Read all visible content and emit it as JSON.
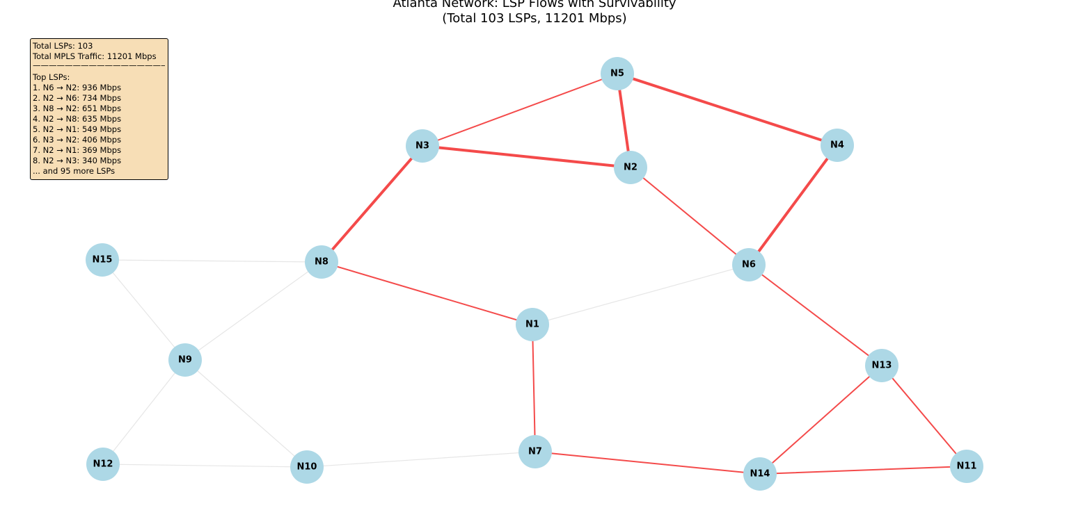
{
  "title": {
    "line1": "Atlanta Network: LSP Flows with Survivability",
    "line2": "(Total 103 LSPs, 11201 Mbps)"
  },
  "colors": {
    "node": "#add8e6",
    "active_edge": "#f44a4a",
    "inactive_edge": "#e6e6e6",
    "infobox_bg": "#f7deb6"
  },
  "nodes": [
    {
      "id": "N1",
      "label": "N1"
    },
    {
      "id": "N2",
      "label": "N2"
    },
    {
      "id": "N3",
      "label": "N3"
    },
    {
      "id": "N4",
      "label": "N4"
    },
    {
      "id": "N5",
      "label": "N5"
    },
    {
      "id": "N6",
      "label": "N6"
    },
    {
      "id": "N7",
      "label": "N7"
    },
    {
      "id": "N8",
      "label": "N8"
    },
    {
      "id": "N9",
      "label": "N9"
    },
    {
      "id": "N10",
      "label": "N10"
    },
    {
      "id": "N11",
      "label": "N11"
    },
    {
      "id": "N12",
      "label": "N12"
    },
    {
      "id": "N13",
      "label": "N13"
    },
    {
      "id": "N14",
      "label": "N14"
    },
    {
      "id": "N15",
      "label": "N15"
    }
  ],
  "edges": [
    {
      "from": "N5",
      "to": "N3",
      "state": "active",
      "weight": "medium"
    },
    {
      "from": "N5",
      "to": "N2",
      "state": "active",
      "weight": "heavy"
    },
    {
      "from": "N5",
      "to": "N4",
      "state": "active",
      "weight": "heavy"
    },
    {
      "from": "N3",
      "to": "N2",
      "state": "active",
      "weight": "heavy"
    },
    {
      "from": "N3",
      "to": "N8",
      "state": "active",
      "weight": "heavy"
    },
    {
      "from": "N4",
      "to": "N6",
      "state": "active",
      "weight": "heavy"
    },
    {
      "from": "N2",
      "to": "N6",
      "state": "active",
      "weight": "medium"
    },
    {
      "from": "N8",
      "to": "N1",
      "state": "active",
      "weight": "medium"
    },
    {
      "from": "N6",
      "to": "N13",
      "state": "active",
      "weight": "medium"
    },
    {
      "from": "N1",
      "to": "N7",
      "state": "active",
      "weight": "medium"
    },
    {
      "from": "N7",
      "to": "N14",
      "state": "active",
      "weight": "medium"
    },
    {
      "from": "N13",
      "to": "N14",
      "state": "active",
      "weight": "medium"
    },
    {
      "from": "N13",
      "to": "N11",
      "state": "active",
      "weight": "medium"
    },
    {
      "from": "N14",
      "to": "N11",
      "state": "active",
      "weight": "medium"
    },
    {
      "from": "N1",
      "to": "N6",
      "state": "inactive",
      "weight": "light"
    },
    {
      "from": "N15",
      "to": "N8",
      "state": "inactive",
      "weight": "light"
    },
    {
      "from": "N15",
      "to": "N9",
      "state": "inactive",
      "weight": "light"
    },
    {
      "from": "N8",
      "to": "N9",
      "state": "inactive",
      "weight": "light"
    },
    {
      "from": "N9",
      "to": "N12",
      "state": "inactive",
      "weight": "light"
    },
    {
      "from": "N9",
      "to": "N10",
      "state": "inactive",
      "weight": "light"
    },
    {
      "from": "N12",
      "to": "N10",
      "state": "inactive",
      "weight": "light"
    },
    {
      "from": "N10",
      "to": "N7",
      "state": "inactive",
      "weight": "light"
    }
  ],
  "infobox": {
    "total_lsps": "Total LSPs: 103",
    "total_traffic": "Total MPLS Traffic: 11201 Mbps",
    "separator": "————————————————————",
    "top_header": "Top LSPs:",
    "top_lsps": [
      "1. N6 → N2: 936 Mbps",
      "2. N2 → N6: 734 Mbps",
      "3. N8 → N2: 651 Mbps",
      "4. N2 → N8: 635 Mbps",
      "5. N2 → N1: 549 Mbps",
      "6. N3 → N2: 406 Mbps",
      "7. N2 → N1: 369 Mbps",
      "8. N2 → N3: 340 Mbps"
    ],
    "more": "... and 95 more LSPs"
  }
}
